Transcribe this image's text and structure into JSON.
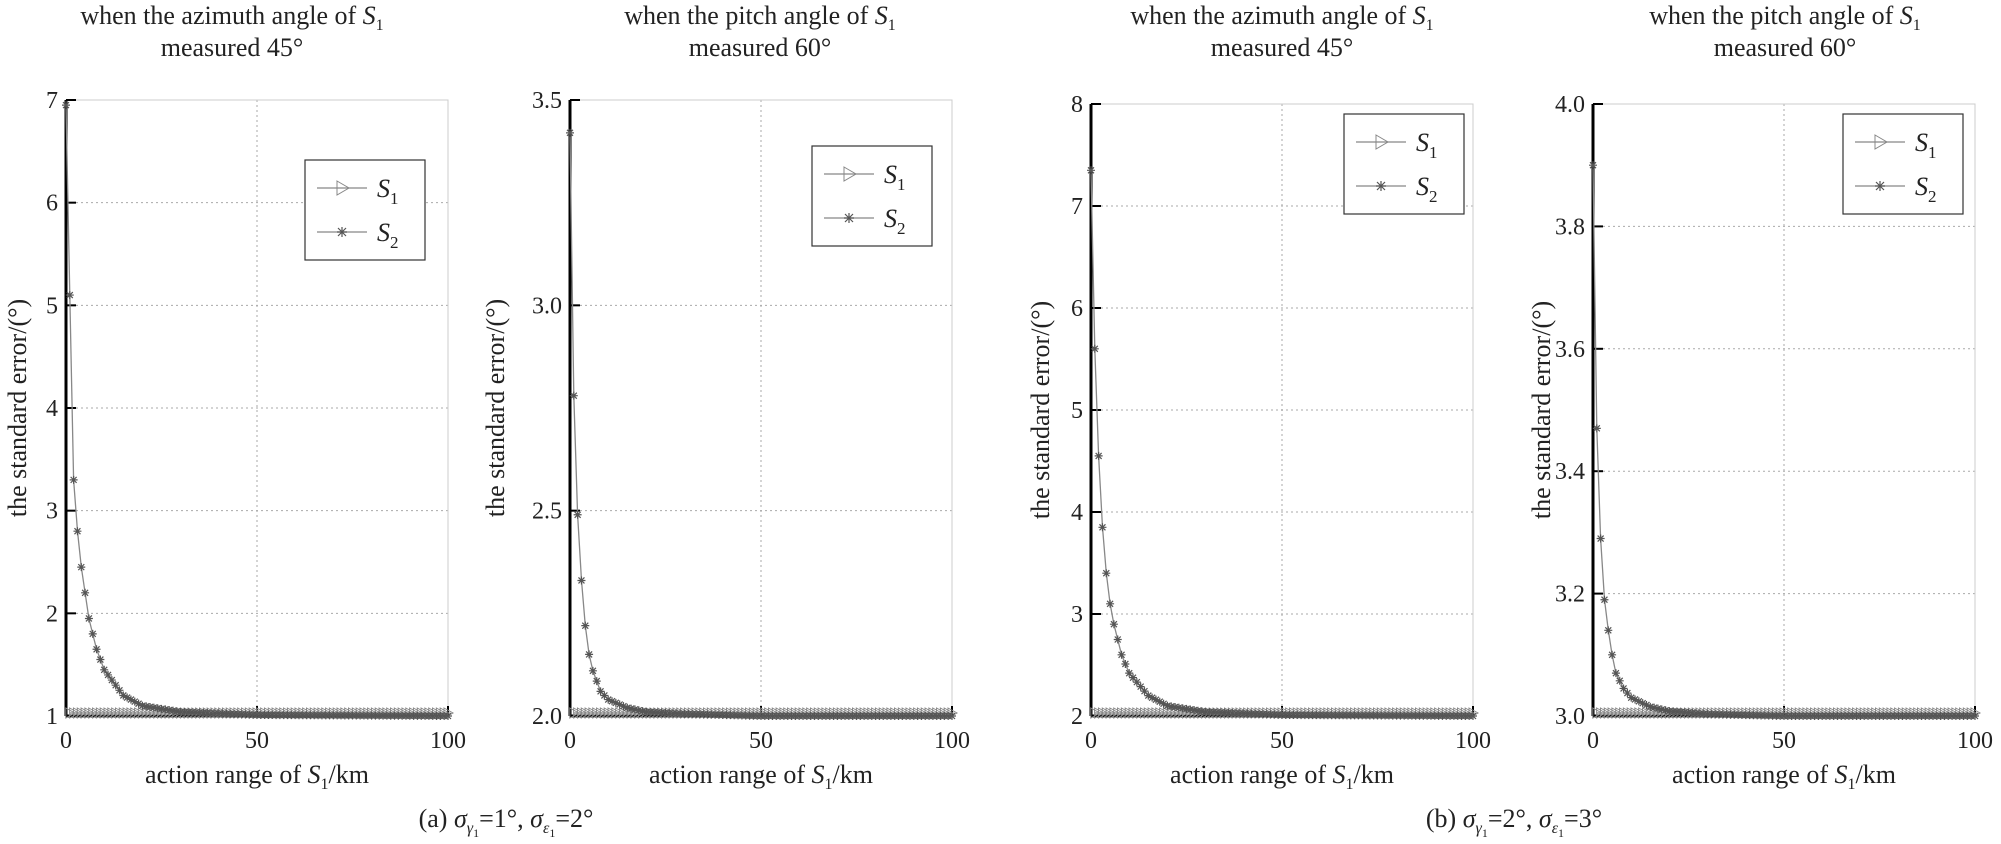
{
  "captions": [
    {
      "prefix": "(a) ",
      "a_val": "=1°, ",
      "b_val": "=2°"
    },
    {
      "prefix": "(b) ",
      "a_val": "=2°, ",
      "b_val": "=3°"
    }
  ],
  "chart_data": [
    {
      "type": "line",
      "title": [
        "when the azimuth angle of S1",
        "measured 45°"
      ],
      "xlabel": "action range of S1/km",
      "ylabel": "the standard error/(°)",
      "xlim": [
        0,
        100
      ],
      "ylim": [
        1,
        7
      ],
      "xticks": [
        0,
        50,
        100
      ],
      "yticks": [
        1,
        2,
        3,
        4,
        5,
        6,
        7
      ],
      "grid": true,
      "legend": "top-right",
      "series": [
        {
          "name": "S1",
          "marker": "triangle-right",
          "values_desc": "constant",
          "x": [
            1,
            100
          ],
          "y": [
            1.0,
            1.0
          ]
        },
        {
          "name": "S2",
          "marker": "star",
          "x": [
            0,
            1,
            2,
            3,
            4,
            5,
            6,
            8,
            10,
            15,
            20,
            30,
            50,
            100
          ],
          "y": [
            6.95,
            5.1,
            3.3,
            2.8,
            2.45,
            2.2,
            1.95,
            1.65,
            1.45,
            1.2,
            1.1,
            1.04,
            1.01,
            1.0
          ]
        }
      ]
    },
    {
      "type": "line",
      "title": [
        "when the pitch angle of S1",
        "measured 60°"
      ],
      "xlabel": "action range  of S1/km",
      "ylabel": "the standard error/(°)",
      "xlim": [
        0,
        100
      ],
      "ylim": [
        2,
        3.5
      ],
      "xticks": [
        0,
        50,
        100
      ],
      "yticks": [
        2.0,
        2.5,
        3.0,
        3.5
      ],
      "grid": true,
      "legend": "top-right",
      "series": [
        {
          "name": "S1",
          "marker": "triangle-right",
          "x": [
            1,
            100
          ],
          "y": [
            2.0,
            2.0
          ]
        },
        {
          "name": "S2",
          "marker": "star",
          "x": [
            0,
            1,
            2,
            3,
            4,
            5,
            6,
            8,
            10,
            15,
            20,
            30,
            50,
            100
          ],
          "y": [
            3.42,
            2.78,
            2.49,
            2.33,
            2.22,
            2.15,
            2.11,
            2.06,
            2.04,
            2.02,
            2.01,
            2.005,
            2.0,
            2.0
          ]
        }
      ]
    },
    {
      "type": "line",
      "title": [
        "when the azimuth angle of S1",
        "measured 45°"
      ],
      "xlabel": "action range of S1/km",
      "ylabel": "the standard error/(°)",
      "xlim": [
        0,
        100
      ],
      "ylim": [
        2,
        8
      ],
      "xticks": [
        0,
        50,
        100
      ],
      "yticks": [
        2,
        3,
        4,
        5,
        6,
        7,
        8
      ],
      "grid": true,
      "legend": "top-right",
      "series": [
        {
          "name": "S1",
          "marker": "triangle-right",
          "x": [
            1,
            100
          ],
          "y": [
            2.0,
            2.0
          ]
        },
        {
          "name": "S2",
          "marker": "star",
          "x": [
            0,
            1,
            2,
            3,
            4,
            5,
            6,
            8,
            10,
            15,
            20,
            30,
            50,
            100
          ],
          "y": [
            7.35,
            5.6,
            4.55,
            3.85,
            3.4,
            3.1,
            2.9,
            2.6,
            2.42,
            2.2,
            2.1,
            2.04,
            2.01,
            2.0
          ]
        }
      ]
    },
    {
      "type": "line",
      "title": [
        "when the pitch angle of S1",
        "measured 60°"
      ],
      "xlabel": "action range of S1/km",
      "ylabel": "the standard error/(°)",
      "xlim": [
        0,
        100
      ],
      "ylim": [
        3.0,
        4.0
      ],
      "xticks": [
        0,
        50,
        100
      ],
      "yticks": [
        3.0,
        3.2,
        3.4,
        3.6,
        3.8,
        4.0
      ],
      "grid": true,
      "legend": "top-right",
      "series": [
        {
          "name": "S1",
          "marker": "triangle-right",
          "x": [
            1,
            100
          ],
          "y": [
            3.0,
            3.0
          ]
        },
        {
          "name": "S2",
          "marker": "star",
          "x": [
            0,
            1,
            2,
            3,
            4,
            5,
            6,
            8,
            10,
            15,
            20,
            30,
            50,
            100
          ],
          "y": [
            3.9,
            3.47,
            3.29,
            3.19,
            3.14,
            3.1,
            3.07,
            3.045,
            3.03,
            3.015,
            3.008,
            3.003,
            3.0,
            3.0
          ]
        }
      ]
    }
  ]
}
